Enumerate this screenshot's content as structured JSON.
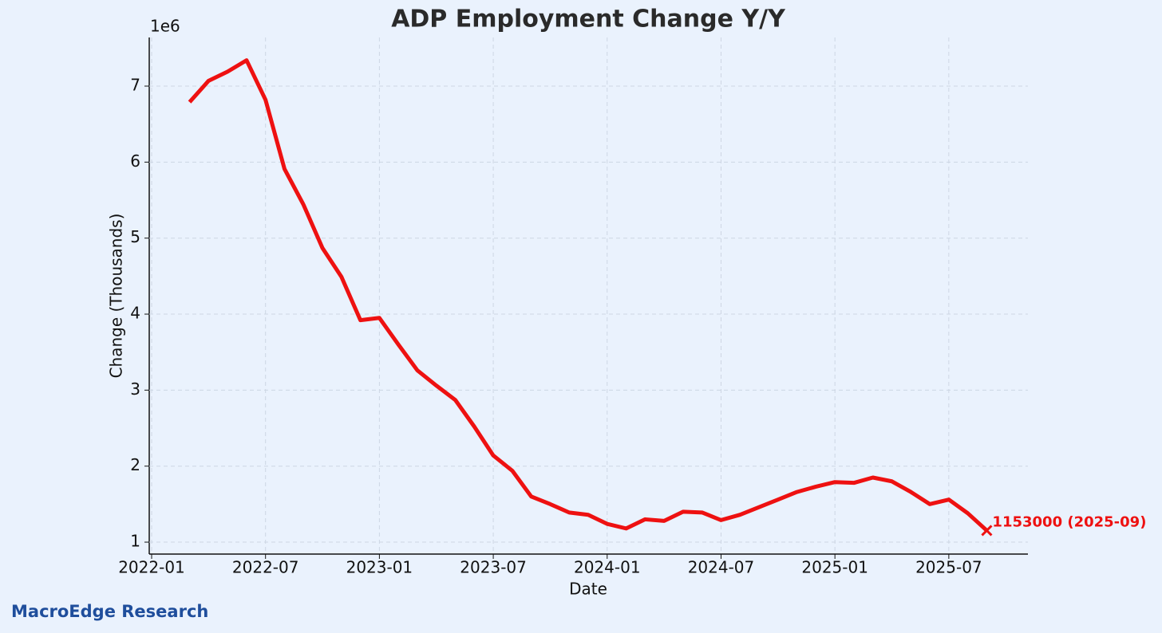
{
  "chart_data": {
    "type": "line",
    "title": "ADP Employment Change Y/Y",
    "x_label": "Date",
    "y_label": "Change (Thousands)",
    "y_offset_label": "1e6",
    "x": [
      "2022-03",
      "2022-04",
      "2022-05",
      "2022-06",
      "2022-07",
      "2022-08",
      "2022-09",
      "2022-10",
      "2022-11",
      "2022-12",
      "2023-01",
      "2023-02",
      "2023-03",
      "2023-04",
      "2023-05",
      "2023-06",
      "2023-07",
      "2023-08",
      "2023-09",
      "2023-10",
      "2023-11",
      "2023-12",
      "2024-01",
      "2024-02",
      "2024-03",
      "2024-04",
      "2024-05",
      "2024-06",
      "2024-07",
      "2024-08",
      "2024-09",
      "2024-10",
      "2024-11",
      "2024-12",
      "2025-01",
      "2025-02",
      "2025-03",
      "2025-04",
      "2025-05",
      "2025-06",
      "2025-07",
      "2025-08",
      "2025-09"
    ],
    "series": [
      {
        "name": "ADP Employment Change Y/Y",
        "color": "#ee1111",
        "values": [
          6790000,
          7070000,
          7190000,
          7340000,
          6820000,
          5910000,
          5440000,
          4870000,
          4490000,
          3920000,
          3950000,
          3600000,
          3260000,
          3060000,
          2870000,
          2520000,
          2140000,
          1940000,
          1600000,
          1500000,
          1390000,
          1360000,
          1240000,
          1180000,
          1300000,
          1280000,
          1400000,
          1390000,
          1290000,
          1360000,
          1460000,
          1560000,
          1660000,
          1730000,
          1790000,
          1780000,
          1850000,
          1800000,
          1660000,
          1500000,
          1560000,
          1380000,
          1153000
        ]
      }
    ],
    "annotation": "1153000 (2025-09)",
    "xlim": [
      "2022-01",
      "2025-11"
    ],
    "xticks": [
      "2022-01",
      "2022-07",
      "2023-01",
      "2023-07",
      "2024-01",
      "2024-07",
      "2025-01",
      "2025-07"
    ],
    "ylim": [
      843000,
      7640000
    ],
    "yticks": [
      {
        "value": 1000000,
        "label": "1"
      },
      {
        "value": 2000000,
        "label": "2"
      },
      {
        "value": 3000000,
        "label": "3"
      },
      {
        "value": 4000000,
        "label": "4"
      },
      {
        "value": 5000000,
        "label": "5"
      },
      {
        "value": 6000000,
        "label": "6"
      },
      {
        "value": 7000000,
        "label": "7"
      }
    ],
    "grid": true,
    "source": "MacroEdge Research"
  }
}
